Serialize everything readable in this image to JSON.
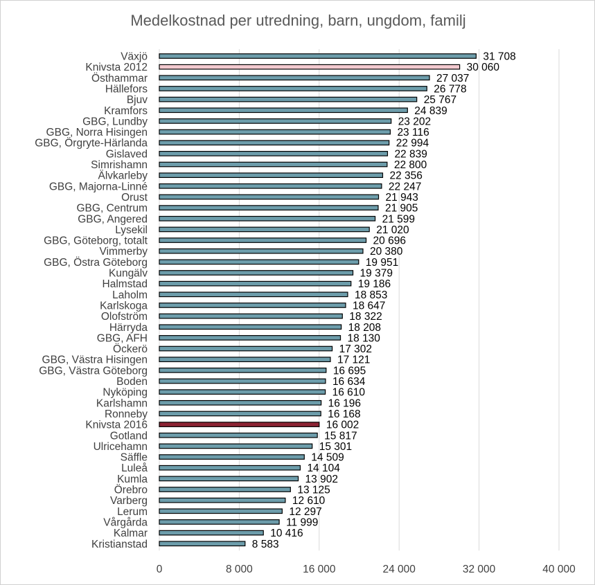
{
  "chart_data": {
    "type": "bar",
    "orientation": "horizontal",
    "title": "Medelkostnad per utredning, barn, ungdom, familj",
    "categories": [
      "Växjö",
      "Knivsta 2012",
      "Östhammar",
      "Hällefors",
      "Bjuv",
      "Kramfors",
      "GBG, Lundby",
      "GBG, Norra Hisingen",
      "GBG, Örgryte-Härlanda",
      "Gislaved",
      "Simrishamn",
      "Älvkarleby",
      "GBG, Majorna-Linné",
      "Orust",
      "GBG, Centrum",
      "GBG, Angered",
      "Lysekil",
      "GBG, Göteborg, totalt",
      "Vimmerby",
      "GBG, Östra Göteborg",
      "Kungälv",
      "Halmstad",
      "Laholm",
      "Karlskoga",
      "Olofström",
      "Härryda",
      "GBG, AFH",
      "Öckerö",
      "GBG, Västra Hisingen",
      "GBG, Västra Göteborg",
      "Boden",
      "Nyköping",
      "Karlshamn",
      "Ronneby",
      "Knivsta 2016",
      "Gotland",
      "Ulricehamn",
      "Säffle",
      "Luleå",
      "Kumla",
      "Örebro",
      "Varberg",
      "Lerum",
      "Vårgårda",
      "Kalmar",
      "Kristianstad"
    ],
    "values": [
      31708,
      30060,
      27037,
      26778,
      25767,
      24839,
      23202,
      23116,
      22994,
      22839,
      22800,
      22356,
      22247,
      21943,
      21905,
      21599,
      21020,
      20696,
      20380,
      19951,
      19379,
      19186,
      18853,
      18647,
      18322,
      18208,
      18130,
      17302,
      17121,
      16695,
      16634,
      16610,
      16196,
      16168,
      16002,
      15817,
      15301,
      14509,
      14104,
      13902,
      13125,
      12610,
      12297,
      11999,
      10416,
      8583
    ],
    "value_labels": [
      "31 708",
      "30 060",
      "27 037",
      "26 778",
      "25 767",
      "24 839",
      "23 202",
      "23 116",
      "22 994",
      "22 839",
      "22 800",
      "22 356",
      "22 247",
      "21 943",
      "21 905",
      "21 599",
      "21 020",
      "20 696",
      "20 380",
      "19 951",
      "19 379",
      "19 186",
      "18 853",
      "18 647",
      "18 322",
      "18 208",
      "18 130",
      "17 302",
      "17 121",
      "16 695",
      "16 634",
      "16 610",
      "16 196",
      "16 168",
      "16 002",
      "15 817",
      "15 301",
      "14 509",
      "14 104",
      "13 902",
      "13 125",
      "12 610",
      "12 297",
      "11 999",
      "10 416",
      "8 583"
    ],
    "xlim": [
      0,
      40000
    ],
    "xticks": [
      0,
      8000,
      16000,
      24000,
      32000,
      40000
    ],
    "xtick_labels": [
      "0",
      "8 000",
      "16 000",
      "24 000",
      "32 000",
      "40 000"
    ],
    "grid": "vertical",
    "legend": "none",
    "colors": {
      "default": "#6d9dab",
      "Knivsta 2012": "#f2c9cf",
      "Knivsta 2016": "#8c2333",
      "bar_edge": "#000000",
      "grid": "#d9d9d9"
    }
  }
}
